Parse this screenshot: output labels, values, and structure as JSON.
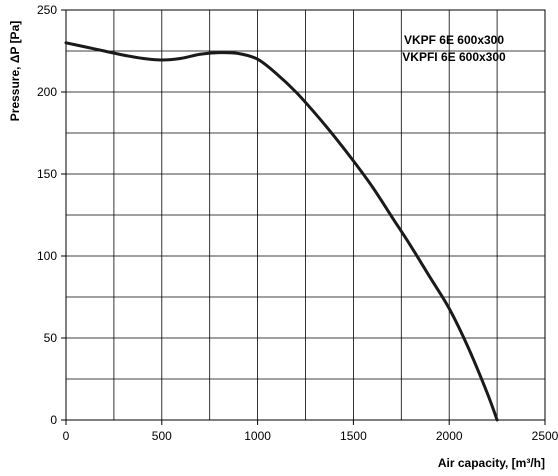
{
  "chart_data": {
    "type": "line",
    "title": "",
    "xlabel": "Air capacity, [m³/h]",
    "ylabel": "Pressure, ΔP [Pa]",
    "xlim": [
      0,
      2500
    ],
    "ylim": [
      0,
      250
    ],
    "xticks": [
      0,
      500,
      1000,
      1500,
      2000,
      2500
    ],
    "yticks": [
      0,
      50,
      100,
      150,
      200,
      250
    ],
    "xtick_labels": [
      "0",
      "500",
      "1000",
      "1500",
      "2000",
      "2500"
    ],
    "ytick_labels": [
      "0",
      "50",
      "100",
      "150",
      "200",
      "250"
    ],
    "grid": true,
    "legend_position": "top-right",
    "legend_lines": [
      "VKPF 6E 600x300",
      "VKPFI 6E 600x300"
    ],
    "series": [
      {
        "x": [
          0,
          100,
          200,
          300,
          400,
          500,
          600,
          700,
          800,
          900,
          1000,
          1100,
          1200,
          1300,
          1400,
          1500,
          1600,
          1700,
          1800,
          1900,
          2000,
          2100,
          2200,
          2250
        ],
        "y": [
          230,
          227.5,
          225,
          222.5,
          220.5,
          219.5,
          220.5,
          223,
          224,
          223.5,
          220,
          211,
          200,
          187,
          173,
          158,
          142,
          124,
          106,
          87,
          68,
          44,
          16,
          0
        ]
      }
    ],
    "colors": {
      "line": "#1a1a1a",
      "grid": "#000000",
      "background": "#ffffff"
    }
  }
}
